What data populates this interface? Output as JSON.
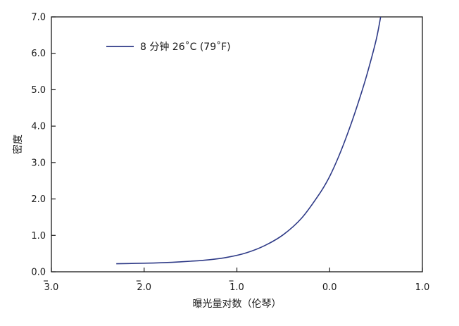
{
  "chart_data": {
    "type": "line",
    "title": "",
    "xlabel": "曝光量对数（伦琴）",
    "ylabel": "密度",
    "xlim": [
      -3.0,
      1.0
    ],
    "ylim": [
      0.0,
      7.0
    ],
    "x_tick_labels": [
      "3.0",
      "2.0",
      "1.0",
      "0.0",
      "1.0"
    ],
    "x_tick_values": [
      -3.0,
      -2.0,
      -1.0,
      0.0,
      1.0
    ],
    "x_tick_bar_over_digit": [
      true,
      true,
      true,
      false,
      false
    ],
    "y_tick_labels": [
      "0.0",
      "1.0",
      "2.0",
      "3.0",
      "4.0",
      "5.0",
      "6.0",
      "7.0"
    ],
    "y_tick_values": [
      0,
      1,
      2,
      3,
      4,
      5,
      6,
      7
    ],
    "grid": false,
    "legend_position": "top-left",
    "series": [
      {
        "name": "8 分钟 26˚C (79˚F)",
        "color": "#2e3a87",
        "x": [
          -2.3,
          -2.1,
          -1.9,
          -1.7,
          -1.5,
          -1.3,
          -1.1,
          -0.9,
          -0.7,
          -0.5,
          -0.3,
          -0.1,
          0.0,
          0.1,
          0.2,
          0.3,
          0.4,
          0.5,
          0.55
        ],
        "y": [
          0.22,
          0.23,
          0.24,
          0.26,
          0.29,
          0.33,
          0.4,
          0.52,
          0.72,
          1.02,
          1.48,
          2.18,
          2.62,
          3.18,
          3.84,
          4.58,
          5.4,
          6.35,
          7.0
        ]
      }
    ]
  }
}
